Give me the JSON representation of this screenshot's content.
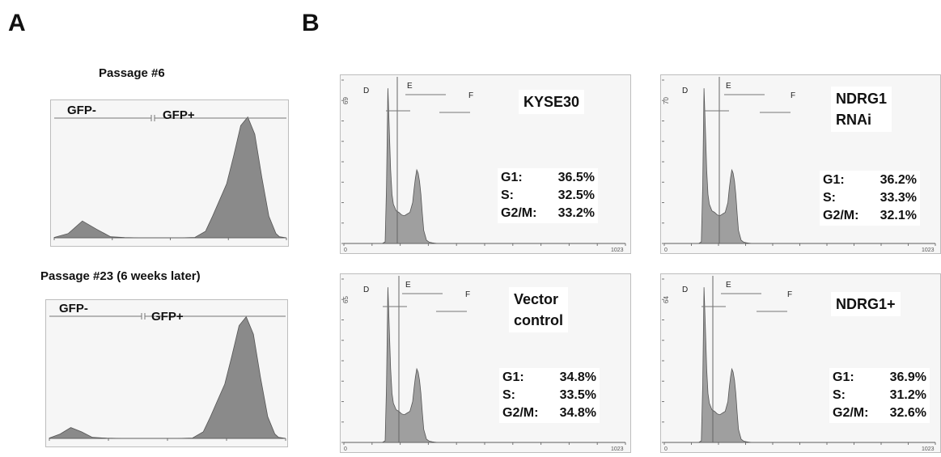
{
  "panels": {
    "a": {
      "letter": "A"
    },
    "b": {
      "letter": "B"
    }
  },
  "chart_data": [
    {
      "type": "area",
      "panel": "A",
      "title": "Passage #6",
      "gates": [
        "GFP-",
        "GFP+"
      ],
      "x": [
        0,
        20,
        40,
        60,
        80,
        100,
        120,
        140,
        160,
        180,
        200,
        215,
        225,
        235,
        245,
        255,
        265,
        275,
        285,
        295,
        305,
        315,
        320,
        330
      ],
      "values": [
        2,
        20,
        78,
        40,
        5,
        1,
        0,
        0,
        0,
        0,
        2,
        30,
        100,
        175,
        250,
        380,
        520,
        560,
        480,
        280,
        100,
        20,
        5,
        0
      ],
      "ylim": [
        0,
        600
      ],
      "fill": "#8a8a8a"
    },
    {
      "type": "area",
      "panel": "A",
      "title": "Passage #23 (6 weeks later)",
      "gates": [
        "GFP-",
        "GFP+"
      ],
      "x": [
        0,
        15,
        30,
        45,
        60,
        80,
        100,
        120,
        140,
        160,
        180,
        200,
        215,
        225,
        235,
        245,
        255,
        265,
        275,
        285,
        295,
        305,
        315,
        320,
        330
      ],
      "values": [
        2,
        20,
        50,
        30,
        5,
        1,
        0,
        0,
        0,
        0,
        0,
        2,
        30,
        100,
        175,
        250,
        380,
        520,
        560,
        480,
        280,
        100,
        20,
        5,
        0
      ],
      "ylim": [
        0,
        600
      ],
      "fill": "#8a8a8a"
    },
    {
      "type": "area",
      "panel": "B",
      "sample": [
        "KYSE30"
      ],
      "gates": [
        "D",
        "E",
        "F"
      ],
      "stats": [
        {
          "phase": "G1:",
          "value": "36.5%"
        },
        {
          "phase": "S:",
          "value": "32.5%"
        },
        {
          "phase": "G2/M:",
          "value": "33.2%"
        }
      ],
      "xlim": [
        0,
        1023
      ],
      "x_ticks": [
        "0",
        "1023"
      ],
      "y_max_label": "69",
      "x": [
        0,
        140,
        150,
        155,
        160,
        165,
        170,
        175,
        180,
        190,
        200,
        210,
        220,
        230,
        240,
        250,
        255,
        260,
        265,
        270,
        275,
        280,
        285,
        290,
        300,
        310,
        320,
        330,
        340,
        1023
      ],
      "values": [
        0,
        0,
        10,
        350,
        950,
        700,
        450,
        300,
        240,
        200,
        190,
        175,
        170,
        180,
        190,
        250,
        330,
        400,
        450,
        430,
        380,
        300,
        180,
        80,
        20,
        8,
        4,
        2,
        0,
        0
      ],
      "ylim": [
        0,
        1000
      ],
      "fill": "#9f9f9f"
    },
    {
      "type": "area",
      "panel": "B",
      "sample": [
        "NDRG1",
        "RNAi"
      ],
      "gates": [
        "D",
        "E",
        "F"
      ],
      "stats": [
        {
          "phase": "G1:",
          "value": "36.2%"
        },
        {
          "phase": "S:",
          "value": "33.3%"
        },
        {
          "phase": "G2/M:",
          "value": "32.1%"
        }
      ],
      "xlim": [
        0,
        1023
      ],
      "x_ticks": [
        "0",
        "1023"
      ],
      "y_max_label": "70",
      "x": [
        0,
        130,
        140,
        145,
        150,
        155,
        160,
        165,
        170,
        180,
        190,
        200,
        210,
        220,
        230,
        240,
        245,
        250,
        255,
        260,
        265,
        270,
        275,
        280,
        290,
        300,
        310,
        320,
        330,
        1023
      ],
      "values": [
        0,
        0,
        10,
        350,
        950,
        700,
        450,
        300,
        240,
        200,
        190,
        175,
        170,
        180,
        190,
        250,
        330,
        400,
        450,
        430,
        380,
        300,
        180,
        80,
        20,
        8,
        4,
        2,
        0,
        0
      ],
      "ylim": [
        0,
        1000
      ],
      "fill": "#9f9f9f"
    },
    {
      "type": "area",
      "panel": "B",
      "sample": [
        "Vector",
        "control"
      ],
      "gates": [
        "D",
        "E",
        "F"
      ],
      "stats": [
        {
          "phase": "G1:",
          "value": "34.8%"
        },
        {
          "phase": "S:",
          "value": "33.5%"
        },
        {
          "phase": "G2/M:",
          "value": "34.8%"
        }
      ],
      "xlim": [
        0,
        1023
      ],
      "x_ticks": [
        "0",
        "1023"
      ],
      "y_max_label": "65",
      "x": [
        0,
        140,
        150,
        155,
        160,
        165,
        170,
        175,
        180,
        190,
        200,
        210,
        220,
        230,
        240,
        250,
        255,
        260,
        265,
        270,
        275,
        280,
        285,
        290,
        300,
        310,
        320,
        330,
        340,
        1023
      ],
      "values": [
        0,
        0,
        10,
        350,
        950,
        700,
        450,
        300,
        240,
        200,
        190,
        175,
        170,
        180,
        190,
        250,
        330,
        400,
        450,
        430,
        380,
        300,
        180,
        80,
        20,
        8,
        4,
        2,
        0,
        0
      ],
      "ylim": [
        0,
        1000
      ],
      "fill": "#9f9f9f"
    },
    {
      "type": "area",
      "panel": "B",
      "sample": [
        "NDRG1+"
      ],
      "gates": [
        "D",
        "E",
        "F"
      ],
      "stats": [
        {
          "phase": "G1:",
          "value": "36.9%"
        },
        {
          "phase": "S:",
          "value": "31.2%"
        },
        {
          "phase": "G2/M:",
          "value": "32.6%"
        }
      ],
      "xlim": [
        0,
        1023
      ],
      "x_ticks": [
        "0",
        "1023"
      ],
      "y_max_label": "64",
      "x": [
        0,
        130,
        140,
        145,
        150,
        155,
        160,
        165,
        170,
        180,
        190,
        200,
        210,
        220,
        230,
        240,
        245,
        250,
        255,
        260,
        265,
        270,
        275,
        280,
        290,
        300,
        310,
        320,
        330,
        1023
      ],
      "values": [
        0,
        0,
        10,
        350,
        950,
        700,
        450,
        300,
        240,
        200,
        190,
        175,
        170,
        180,
        190,
        250,
        330,
        400,
        450,
        430,
        380,
        300,
        180,
        80,
        20,
        8,
        4,
        2,
        0,
        0
      ],
      "ylim": [
        0,
        1000
      ],
      "fill": "#9f9f9f"
    }
  ]
}
